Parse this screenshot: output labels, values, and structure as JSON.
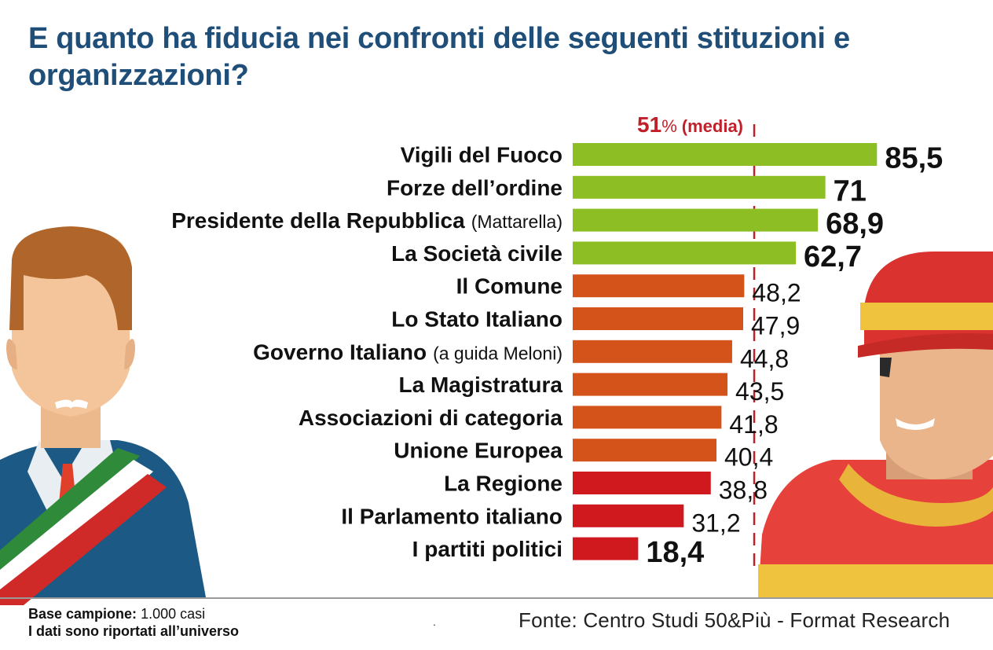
{
  "title": "E quanto ha fiducia nei confronti delle seguenti stituzioni e organizzazioni?",
  "chart_data": {
    "type": "bar",
    "orientation": "horizontal",
    "xlim": [
      0,
      100
    ],
    "reference": {
      "value": 51,
      "number": "51",
      "unit": "%",
      "label": "(media)",
      "color": "#c0202a"
    },
    "categories": [
      "Vigili del Fuoco",
      "Forze dell’ordine",
      "Presidente della Repubblica",
      "La Società civile",
      "Il Comune",
      "Lo Stato Italiano",
      "Governo Italiano",
      "La Magistratura",
      "Associazioni di categoria",
      "Unione Europea",
      "La Regione",
      "Il Parlamento italiano",
      "I partiti politici"
    ],
    "notes": [
      "",
      "",
      "(Mattarella)",
      "",
      "",
      "",
      "(a guida Meloni)",
      "",
      "",
      "",
      "",
      "",
      ""
    ],
    "values": [
      85.5,
      71,
      68.9,
      62.7,
      48.2,
      47.9,
      44.8,
      43.5,
      41.8,
      40.4,
      38.8,
      31.2,
      18.4
    ],
    "value_labels": [
      "85,5",
      "71",
      "68,9",
      "62,7",
      "48,2",
      "47,9",
      "44,8",
      "43,5",
      "41,8",
      "40,4",
      "38,8",
      "31,2",
      "18,4"
    ],
    "bar_colors": [
      "#8dbf24",
      "#8dbf24",
      "#8dbf24",
      "#8dbf24",
      "#d4531a",
      "#d4531a",
      "#d4531a",
      "#d4531a",
      "#d4531a",
      "#d4531a",
      "#d0181f",
      "#d0181f",
      "#d0181f"
    ],
    "emphasized_labels": [
      true,
      true,
      true,
      true,
      false,
      false,
      false,
      false,
      false,
      false,
      false,
      false,
      true
    ]
  },
  "footer": {
    "base_label": "Base campione:",
    "base_value": "1.000 casi",
    "note": "I dati sono riportati all’universo",
    "dot": ".",
    "source": "Fonte: Centro Studi 50&Più - Format Research"
  },
  "illustrations": {
    "left": "mayor-with-tricolor-sash-icon",
    "right": "firefighter-icon"
  }
}
